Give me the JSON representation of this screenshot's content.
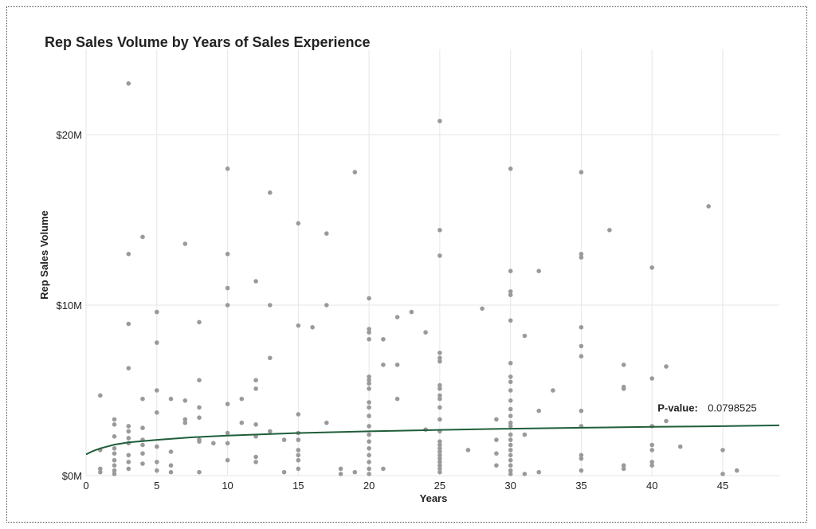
{
  "chart_data": {
    "type": "scatter",
    "title": "Rep Sales Volume by Years of Sales Experience",
    "xlabel": "Years",
    "ylabel": "Rep Sales Volume",
    "xlim": [
      0,
      49
    ],
    "ylim": [
      0,
      25
    ],
    "x_ticks": [
      0,
      5,
      10,
      15,
      20,
      25,
      30,
      35,
      40,
      45
    ],
    "y_ticks": [
      0,
      10,
      20
    ],
    "y_tick_labels": [
      "$0M",
      "$10M",
      "$20M"
    ],
    "grid": true,
    "colors": {
      "points": "#9a9a9a",
      "trend": "#1f5e3a",
      "grid": "#e6e6e6"
    },
    "trend_line": {
      "model": "logarithmic",
      "x": [
        0,
        0.5,
        1,
        2,
        3,
        5,
        7.5,
        10,
        15,
        20,
        25,
        30,
        35,
        40,
        45,
        49
      ],
      "y": [
        1.25,
        1.45,
        1.6,
        1.82,
        1.95,
        2.1,
        2.25,
        2.35,
        2.5,
        2.6,
        2.68,
        2.75,
        2.81,
        2.86,
        2.9,
        2.95
      ]
    },
    "annotation": {
      "label": "P-value:",
      "value": "0.0798525",
      "x": 40,
      "y": 4.0
    },
    "points": [
      [
        1,
        4.7
      ],
      [
        1,
        0.4
      ],
      [
        1,
        0.2
      ],
      [
        1,
        1.5
      ],
      [
        2,
        3.3
      ],
      [
        2,
        3.0
      ],
      [
        2,
        2.3
      ],
      [
        2,
        1.6
      ],
      [
        2,
        1.3
      ],
      [
        2,
        0.9
      ],
      [
        2,
        0.6
      ],
      [
        2,
        0.3
      ],
      [
        2,
        0.1
      ],
      [
        3,
        23.0
      ],
      [
        3,
        13.0
      ],
      [
        3,
        8.9
      ],
      [
        3,
        6.3
      ],
      [
        3,
        2.9
      ],
      [
        3,
        2.6
      ],
      [
        3,
        2.2
      ],
      [
        3,
        1.9
      ],
      [
        3,
        1.2
      ],
      [
        3,
        0.8
      ],
      [
        3,
        0.4
      ],
      [
        4,
        14.0
      ],
      [
        4,
        4.5
      ],
      [
        4,
        2.8
      ],
      [
        4,
        2.1
      ],
      [
        4,
        1.8
      ],
      [
        4,
        1.3
      ],
      [
        4,
        0.7
      ],
      [
        5,
        9.6
      ],
      [
        5,
        7.8
      ],
      [
        5,
        5.0
      ],
      [
        5,
        3.7
      ],
      [
        5,
        1.7
      ],
      [
        5,
        0.8
      ],
      [
        5,
        0.3
      ],
      [
        6,
        4.5
      ],
      [
        6,
        1.4
      ],
      [
        6,
        0.6
      ],
      [
        6,
        0.2
      ],
      [
        7,
        13.6
      ],
      [
        7,
        4.4
      ],
      [
        7,
        3.3
      ],
      [
        7,
        3.1
      ],
      [
        8,
        9.0
      ],
      [
        8,
        5.6
      ],
      [
        8,
        4.0
      ],
      [
        8,
        3.4
      ],
      [
        8,
        2.1
      ],
      [
        8,
        2.0
      ],
      [
        8,
        0.2
      ],
      [
        9,
        1.9
      ],
      [
        10,
        18.0
      ],
      [
        10,
        13.0
      ],
      [
        10,
        11.0
      ],
      [
        10,
        10.0
      ],
      [
        10,
        4.2
      ],
      [
        10,
        2.5
      ],
      [
        10,
        1.9
      ],
      [
        10,
        0.9
      ],
      [
        11,
        4.5
      ],
      [
        11,
        3.1
      ],
      [
        12,
        11.4
      ],
      [
        12,
        5.6
      ],
      [
        12,
        5.1
      ],
      [
        12,
        3.0
      ],
      [
        12,
        2.3
      ],
      [
        12,
        1.1
      ],
      [
        12,
        0.8
      ],
      [
        13,
        16.6
      ],
      [
        13,
        10.0
      ],
      [
        13,
        6.9
      ],
      [
        13,
        2.6
      ],
      [
        14,
        2.1
      ],
      [
        14,
        0.2
      ],
      [
        15,
        14.8
      ],
      [
        15,
        8.8
      ],
      [
        15,
        3.6
      ],
      [
        15,
        2.5
      ],
      [
        15,
        2.1
      ],
      [
        15,
        1.5
      ],
      [
        15,
        1.2
      ],
      [
        15,
        0.9
      ],
      [
        15,
        0.4
      ],
      [
        16,
        8.7
      ],
      [
        17,
        14.2
      ],
      [
        17,
        10.0
      ],
      [
        17,
        3.1
      ],
      [
        18,
        0.4
      ],
      [
        18,
        0.1
      ],
      [
        19,
        17.8
      ],
      [
        19,
        0.2
      ],
      [
        20,
        10.4
      ],
      [
        20,
        8.6
      ],
      [
        20,
        8.4
      ],
      [
        20,
        8.0
      ],
      [
        20,
        5.8
      ],
      [
        20,
        5.6
      ],
      [
        20,
        5.4
      ],
      [
        20,
        5.1
      ],
      [
        20,
        4.3
      ],
      [
        20,
        4.0
      ],
      [
        20,
        3.5
      ],
      [
        20,
        2.9
      ],
      [
        20,
        2.4
      ],
      [
        20,
        2.0
      ],
      [
        20,
        1.6
      ],
      [
        20,
        1.2
      ],
      [
        20,
        0.8
      ],
      [
        20,
        0.4
      ],
      [
        20,
        0.1
      ],
      [
        21,
        8.0
      ],
      [
        21,
        6.5
      ],
      [
        21,
        0.4
      ],
      [
        22,
        9.3
      ],
      [
        22,
        6.5
      ],
      [
        22,
        4.5
      ],
      [
        23,
        9.6
      ],
      [
        24,
        8.4
      ],
      [
        24,
        2.7
      ],
      [
        25,
        20.8
      ],
      [
        25,
        14.4
      ],
      [
        25,
        12.9
      ],
      [
        25,
        7.2
      ],
      [
        25,
        6.9
      ],
      [
        25,
        6.7
      ],
      [
        25,
        5.3
      ],
      [
        25,
        5.1
      ],
      [
        25,
        4.7
      ],
      [
        25,
        4.5
      ],
      [
        25,
        4.0
      ],
      [
        25,
        3.3
      ],
      [
        25,
        2.6
      ],
      [
        25,
        2.0
      ],
      [
        25,
        1.8
      ],
      [
        25,
        1.6
      ],
      [
        25,
        1.4
      ],
      [
        25,
        1.2
      ],
      [
        25,
        1.0
      ],
      [
        25,
        0.8
      ],
      [
        25,
        0.6
      ],
      [
        25,
        0.4
      ],
      [
        25,
        0.2
      ],
      [
        27,
        1.5
      ],
      [
        28,
        9.8
      ],
      [
        29,
        3.3
      ],
      [
        29,
        2.1
      ],
      [
        29,
        1.3
      ],
      [
        29,
        0.6
      ],
      [
        30,
        18.0
      ],
      [
        30,
        12.0
      ],
      [
        30,
        10.8
      ],
      [
        30,
        10.6
      ],
      [
        30,
        9.1
      ],
      [
        30,
        6.6
      ],
      [
        30,
        5.8
      ],
      [
        30,
        5.5
      ],
      [
        30,
        5.0
      ],
      [
        30,
        4.4
      ],
      [
        30,
        3.9
      ],
      [
        30,
        3.5
      ],
      [
        30,
        3.1
      ],
      [
        30,
        2.9
      ],
      [
        30,
        2.4
      ],
      [
        30,
        2.1
      ],
      [
        30,
        1.8
      ],
      [
        30,
        1.5
      ],
      [
        30,
        1.2
      ],
      [
        30,
        0.9
      ],
      [
        30,
        0.6
      ],
      [
        30,
        0.3
      ],
      [
        30,
        0.1
      ],
      [
        31,
        8.2
      ],
      [
        31,
        2.4
      ],
      [
        31,
        0.1
      ],
      [
        32,
        12.0
      ],
      [
        32,
        3.8
      ],
      [
        32,
        0.2
      ],
      [
        33,
        5.0
      ],
      [
        35,
        17.8
      ],
      [
        35,
        13.0
      ],
      [
        35,
        12.8
      ],
      [
        35,
        8.7
      ],
      [
        35,
        7.6
      ],
      [
        35,
        7.0
      ],
      [
        35,
        3.8
      ],
      [
        35,
        2.9
      ],
      [
        35,
        1.2
      ],
      [
        35,
        1.0
      ],
      [
        35,
        0.3
      ],
      [
        37,
        14.4
      ],
      [
        38,
        6.5
      ],
      [
        38,
        5.2
      ],
      [
        38,
        5.1
      ],
      [
        38,
        0.6
      ],
      [
        38,
        0.4
      ],
      [
        40,
        12.2
      ],
      [
        40,
        5.7
      ],
      [
        40,
        2.9
      ],
      [
        40,
        1.8
      ],
      [
        40,
        1.5
      ],
      [
        40,
        0.8
      ],
      [
        40,
        0.6
      ],
      [
        41,
        6.4
      ],
      [
        41,
        3.2
      ],
      [
        42,
        1.7
      ],
      [
        44,
        15.8
      ],
      [
        45,
        1.5
      ],
      [
        45,
        0.1
      ],
      [
        46,
        0.3
      ]
    ]
  }
}
